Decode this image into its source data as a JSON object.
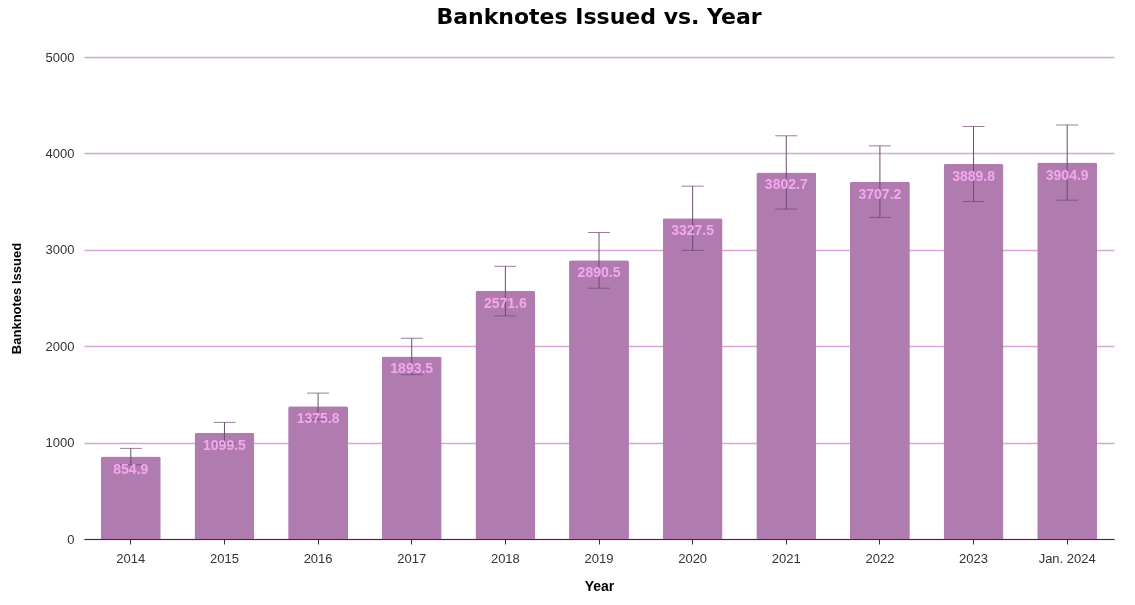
{
  "chart_data": {
    "type": "bar",
    "title": "Banknotes Issued vs. Year",
    "xlabel": "Year",
    "ylabel": "Banknotes Issued",
    "categories": [
      "2014",
      "2015",
      "2016",
      "2017",
      "2018",
      "2019",
      "2020",
      "2021",
      "2022",
      "2023",
      "Jan. 2024"
    ],
    "values": [
      854.9,
      1099.5,
      1375.8,
      1893.5,
      2571.6,
      2890.5,
      3327.5,
      3802.7,
      3707.2,
      3889.8,
      3904.9
    ],
    "errors": [
      85,
      110,
      138,
      189,
      257,
      289,
      333,
      380,
      371,
      389,
      390
    ],
    "color": "#b07cb0",
    "ylim": [
      0,
      5000
    ],
    "yticks": [
      0,
      1000,
      2000,
      3000,
      4000,
      5000
    ],
    "grid": "y",
    "data_labels": true
  }
}
